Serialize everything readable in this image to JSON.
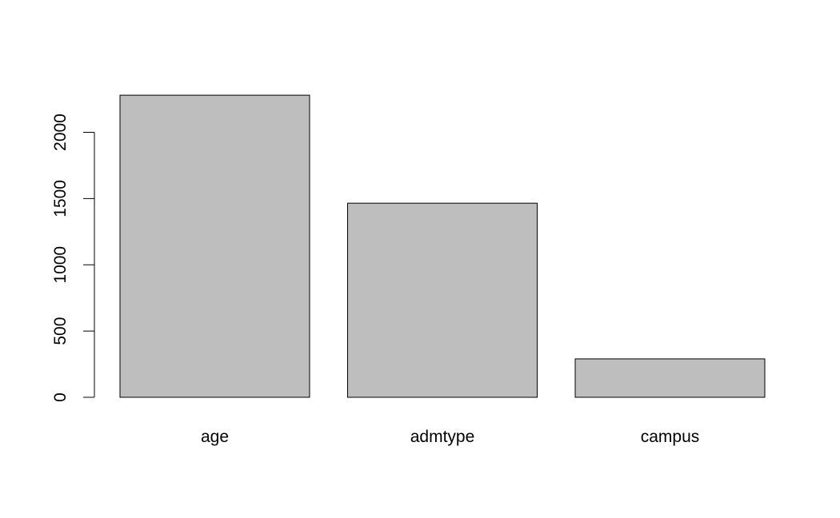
{
  "chart_data": {
    "type": "bar",
    "title": "",
    "xlabel": "",
    "ylabel": "",
    "categories": [
      "age",
      "admtype",
      "campus"
    ],
    "values": [
      2280,
      1465,
      290
    ],
    "ylim": [
      0,
      2280
    ],
    "yticks": [
      0,
      500,
      1000,
      1500,
      2000
    ],
    "ytick_labels": [
      "0",
      "500",
      "1000",
      "1500",
      "2000"
    ],
    "bar_color": "#bebebe",
    "grid": false,
    "legend": "none"
  }
}
